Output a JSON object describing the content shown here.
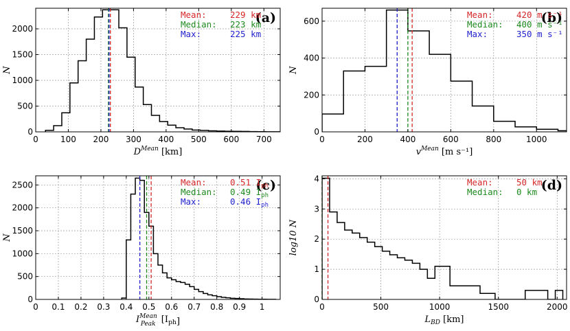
{
  "colors": {
    "mean": "#d62728",
    "median": "#1e8a1e",
    "max": "#1f1fd0"
  },
  "chart_data": [
    {
      "type": "histogram",
      "panel_label": "(a)",
      "ylabel": "N",
      "xlabel_var": "D",
      "xlabel_sup": "Mean",
      "xlabel_unit": "[km]",
      "xlim": [
        0,
        750
      ],
      "ylim": [
        0,
        2400
      ],
      "xticks": [
        0,
        100,
        200,
        300,
        400,
        500,
        600,
        700
      ],
      "yticks": [
        0,
        500,
        1000,
        1500,
        2000
      ],
      "edges": [
        30,
        55,
        80,
        105,
        130,
        155,
        180,
        205,
        230,
        255,
        280,
        305,
        330,
        355,
        380,
        405,
        430,
        455,
        480,
        505,
        530,
        555,
        580,
        605,
        630,
        655,
        680,
        705,
        730,
        755
      ],
      "counts": [
        30,
        120,
        370,
        950,
        1380,
        1800,
        2230,
        2370,
        2370,
        2020,
        1450,
        870,
        530,
        320,
        200,
        130,
        80,
        55,
        35,
        28,
        20,
        15,
        12,
        10,
        8,
        5,
        3,
        2,
        1
      ],
      "stats": [
        {
          "key": "mean",
          "label": "Mean:",
          "value_text": "229 km",
          "value": 229
        },
        {
          "key": "median",
          "label": "Median:",
          "value_text": "223 km",
          "value": 223
        },
        {
          "key": "max",
          "label": "Max:",
          "value_text": "225 km",
          "value": 225
        }
      ]
    },
    {
      "type": "histogram",
      "panel_label": "(b)",
      "ylabel": "N",
      "xlabel_var": "v",
      "xlabel_sup": "Mean",
      "xlabel_unit": "[m s⁻¹]",
      "xlim": [
        0,
        1140
      ],
      "ylim": [
        0,
        670
      ],
      "xticks": [
        0,
        200,
        400,
        600,
        800,
        1000
      ],
      "yticks": [
        0,
        200,
        400,
        600
      ],
      "edges": [
        0,
        100,
        200,
        300,
        400,
        500,
        600,
        700,
        800,
        900,
        1000,
        1100,
        1140
      ],
      "counts": [
        97,
        330,
        355,
        660,
        547,
        420,
        275,
        140,
        57,
        27,
        14,
        6
      ],
      "stats": [
        {
          "key": "mean",
          "label": "Mean:",
          "value_text": "420 m s⁻¹",
          "value": 420
        },
        {
          "key": "median",
          "label": "Median:",
          "value_text": "400 m s⁻¹",
          "value": 400
        },
        {
          "key": "max",
          "label": "Max:",
          "value_text": "350 m s⁻¹",
          "value": 350
        }
      ]
    },
    {
      "type": "histogram",
      "panel_label": "(c)",
      "ylabel": "N",
      "xlabel_var": "I",
      "xlabel_sup": "Mean",
      "xlabel_sub": "Peak",
      "xlabel_unit": "[I_ph]",
      "xlim": [
        0,
        1.08
      ],
      "ylim": [
        0,
        2700
      ],
      "xticks": [
        0.0,
        0.1,
        0.2,
        0.3,
        0.4,
        0.5,
        0.6,
        0.7,
        0.8,
        0.9,
        1.0
      ],
      "yticks": [
        0,
        500,
        1000,
        1500,
        2000,
        2500
      ],
      "edges": [
        0.38,
        0.4,
        0.42,
        0.44,
        0.46,
        0.48,
        0.5,
        0.52,
        0.54,
        0.56,
        0.58,
        0.6,
        0.62,
        0.64,
        0.66,
        0.68,
        0.7,
        0.72,
        0.74,
        0.76,
        0.78,
        0.8,
        0.82,
        0.84,
        0.86,
        0.88,
        0.9,
        0.92,
        0.94,
        0.96,
        0.98,
        1.0,
        1.02,
        1.04,
        1.06
      ],
      "counts": [
        30,
        1300,
        2300,
        2650,
        2600,
        1900,
        1600,
        1000,
        750,
        580,
        470,
        430,
        390,
        370,
        330,
        280,
        220,
        170,
        130,
        100,
        80,
        60,
        45,
        35,
        25,
        20,
        15,
        10,
        8,
        6,
        4,
        3,
        2,
        1
      ],
      "stats": [
        {
          "key": "mean",
          "label": "Mean:",
          "value_text": "0.51 I_ph",
          "value": 0.51
        },
        {
          "key": "median",
          "label": "Median:",
          "value_text": "0.49 I_ph",
          "value": 0.49
        },
        {
          "key": "max",
          "label": "Max:",
          "value_text": "0.46 I_ph",
          "value": 0.46
        }
      ]
    },
    {
      "type": "histogram",
      "panel_label": "(d)",
      "ylabel": "log10 N",
      "xlabel_var": "L",
      "xlabel_sub": "BD",
      "xlabel_unit": "[km]",
      "xlim": [
        0,
        2080
      ],
      "ylim": [
        0,
        4.1
      ],
      "xticks": [
        0,
        500,
        1000,
        1500,
        2000
      ],
      "yticks": [
        0,
        1,
        2,
        3,
        4
      ],
      "edges": [
        0,
        64,
        128,
        192,
        256,
        320,
        384,
        448,
        512,
        576,
        640,
        704,
        768,
        832,
        896,
        960,
        1024,
        1088,
        1152,
        1216,
        1280,
        1344,
        1408,
        1472,
        1536,
        1600,
        1664,
        1728,
        1792,
        1856,
        1920,
        1984,
        2048
      ],
      "counts": [
        4.02,
        2.9,
        2.55,
        2.3,
        2.2,
        2.05,
        1.9,
        1.75,
        1.6,
        1.48,
        1.38,
        1.3,
        1.2,
        1.0,
        0.7,
        1.1,
        1.1,
        0.45,
        0.45,
        0.45,
        0.45,
        0.2,
        0.2,
        0.0,
        0.0,
        0.0,
        0.0,
        0.3,
        0.3,
        0.3,
        0.0,
        0.3
      ],
      "stats": [
        {
          "key": "mean",
          "label": "Mean:",
          "value_text": "50 km",
          "value": 50
        },
        {
          "key": "median",
          "label": "Median:",
          "value_text": "0 km",
          "value": 0
        }
      ]
    }
  ]
}
